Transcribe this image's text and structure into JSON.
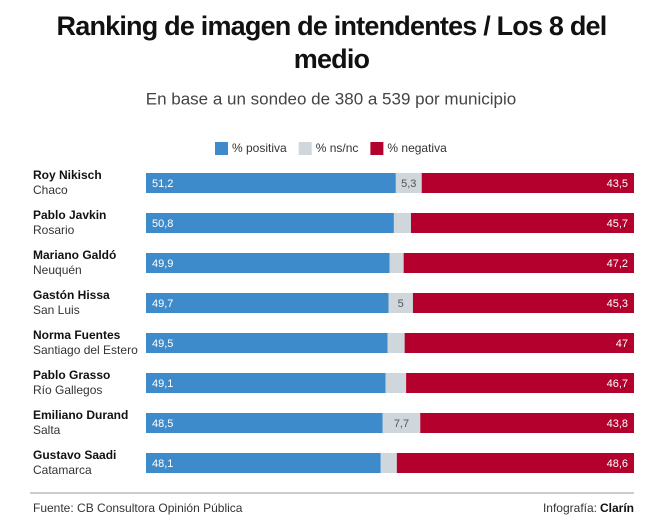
{
  "chart_data": {
    "type": "stacked-bar-horizontal",
    "title": "Ranking de imagen de intendentes / Los 8 del medio",
    "subtitle": "En base a un sondeo de 380 a 539 por municipio",
    "categories": [
      "Roy Nikisch",
      "Pablo Javkin",
      "Mariano Galdó",
      "Gastón Hissa",
      "Norma Fuentes",
      "Pablo Grasso",
      "Emiliano Durand",
      "Gustavo Saadi"
    ],
    "category_sublabels": [
      "Chaco",
      "Rosario",
      "Neuquén",
      "San Luis",
      "Santiago del Estero",
      "Río Gallegos",
      "Salta",
      "Catamarca"
    ],
    "xlim": [
      0,
      100
    ],
    "series": [
      {
        "name": "% positiva",
        "color": "#3d8bcb",
        "label_color": "#ffffff",
        "values": [
          51.2,
          50.8,
          49.9,
          49.7,
          49.5,
          49.1,
          48.5,
          48.1
        ],
        "value_labels": [
          "51,2",
          "50,8",
          "49,9",
          "49,7",
          "49,5",
          "49,1",
          "48,5",
          "48,1"
        ]
      },
      {
        "name": "% ns/nc",
        "color": "#cfd6dc",
        "label_color": "#555555",
        "values": [
          5.3,
          3.5,
          2.9,
          5,
          3.5,
          4.2,
          7.7,
          3.3
        ],
        "value_labels": [
          "5,3",
          null,
          null,
          "5",
          null,
          null,
          "7,7",
          null
        ]
      },
      {
        "name": "% negativa",
        "color": "#b4002d",
        "label_color": "#ffffff",
        "values": [
          43.5,
          45.7,
          47.2,
          45.3,
          47,
          46.7,
          43.8,
          48.6
        ],
        "value_labels": [
          "43,5",
          "45,7",
          "47,2",
          "45,3",
          "47",
          "46,7",
          "43,8",
          "48,6"
        ]
      }
    ],
    "source": "Fuente: CB Consultora Opinión Pública",
    "credit_label": "Infografía:",
    "credit_name": "Clarín"
  }
}
